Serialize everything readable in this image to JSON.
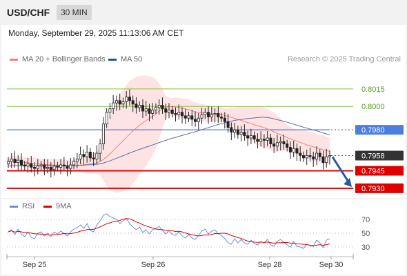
{
  "header": {
    "symbol": "USD/CHF",
    "timeframe": "30 MIN"
  },
  "datetime": "Monday, September 29, 2025 11:13:06 AM CET",
  "legend": {
    "ma": "MA 20 + Bollinger Bands",
    "ma50": "MA 50",
    "rsi": "RSI",
    "rsi_ma": "9MA"
  },
  "credit": "Research © 2025 Trading Central",
  "colors": {
    "ma20": "#f08080",
    "band": "#fde0e0",
    "ma50": "#5b6ea8",
    "rsi": "#6a8fd8",
    "rsi_ma": "#e00000",
    "green": "#88c048",
    "blue": "#4a7fe0",
    "red": "#e00000",
    "dark": "#333333",
    "arrow": "#2a5aa0"
  },
  "chart_data": [
    {
      "type": "candlestick",
      "x_ticks": [
        "Sep 25",
        "Sep 26",
        "Sep 28",
        "Sep 30"
      ],
      "ylim": [
        0.7927,
        0.8032
      ],
      "levels": [
        {
          "name": "level-8015",
          "value": 0.8015,
          "label": "0.8015",
          "style": "green-text"
        },
        {
          "name": "level-8000",
          "value": 0.8,
          "label": "0.8000",
          "style": "green-text"
        },
        {
          "name": "level-7980",
          "value": 0.798,
          "label": "0.7980",
          "style": "blue-box"
        },
        {
          "name": "level-7958",
          "value": 0.7958,
          "label": "0.7958",
          "style": "dark-box"
        },
        {
          "name": "level-7945",
          "value": 0.7945,
          "label": "0.7945",
          "style": "red-box"
        },
        {
          "name": "level-7930",
          "value": 0.793,
          "label": "0.7930",
          "style": "red-box"
        }
      ],
      "close": [
        0.7953,
        0.7955,
        0.7952,
        0.7954,
        0.795,
        0.7949,
        0.7951,
        0.7948,
        0.7947,
        0.7949,
        0.795,
        0.7947,
        0.7948,
        0.7946,
        0.7949,
        0.7948,
        0.795,
        0.7949,
        0.7947,
        0.795,
        0.7953,
        0.7955,
        0.7959,
        0.7957,
        0.7961,
        0.7956,
        0.7955,
        0.796,
        0.7968,
        0.7985,
        0.7995,
        0.7998,
        0.8003,
        0.8005,
        0.8002,
        0.8004,
        0.8008,
        0.8005,
        0.8002,
        0.7999,
        0.8001,
        0.7996,
        0.7998,
        0.7994,
        0.7997,
        0.7999,
        0.8001,
        0.7998,
        0.7995,
        0.7997,
        0.7994,
        0.7993,
        0.7995,
        0.7992,
        0.799,
        0.7992,
        0.7989,
        0.7987,
        0.799,
        0.7993,
        0.7995,
        0.7991,
        0.7993,
        0.7994,
        0.7991,
        0.799,
        0.7987,
        0.7982,
        0.7978,
        0.798,
        0.7976,
        0.7978,
        0.7975,
        0.7973,
        0.7975,
        0.7972,
        0.797,
        0.7972,
        0.7971,
        0.7973,
        0.7968,
        0.7966,
        0.7969,
        0.797,
        0.7968,
        0.7965,
        0.7961,
        0.7964,
        0.796,
        0.7958,
        0.7956,
        0.7958,
        0.7957,
        0.7955,
        0.796,
        0.7957,
        0.7952,
        0.7957,
        0.7958
      ],
      "ma50_end": 0.7975
    },
    {
      "type": "line",
      "name": "rsi",
      "ylim": [
        20,
        80
      ],
      "y_ticks": [
        70,
        50,
        30
      ],
      "rsi": [
        52,
        55,
        48,
        56,
        49,
        45,
        52,
        44,
        42,
        50,
        52,
        46,
        50,
        45,
        52,
        49,
        53,
        50,
        46,
        52,
        56,
        58,
        62,
        57,
        64,
        54,
        52,
        62,
        68,
        76,
        78,
        74,
        72,
        70,
        64,
        68,
        71,
        64,
        59,
        55,
        59,
        51,
        55,
        49,
        55,
        57,
        60,
        54,
        49,
        54,
        48,
        47,
        52,
        46,
        43,
        48,
        43,
        41,
        47,
        53,
        56,
        49,
        53,
        55,
        49,
        47,
        42,
        36,
        34,
        42,
        36,
        41,
        36,
        34,
        40,
        35,
        33,
        38,
        36,
        41,
        33,
        31,
        38,
        41,
        37,
        33,
        30,
        38,
        31,
        30,
        28,
        34,
        32,
        31,
        40,
        36,
        29,
        40,
        42
      ]
    }
  ]
}
